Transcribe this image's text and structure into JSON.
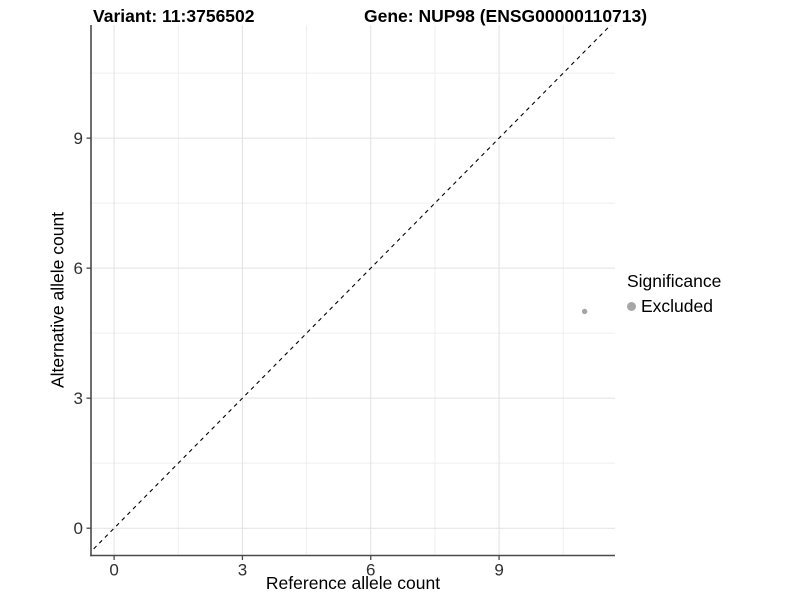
{
  "chart_data": {
    "type": "scatter",
    "title_left": "Variant: 11:3756502",
    "title_right": "Gene: NUP98 (ENSG00000110713)",
    "xlabel": "Reference allele count",
    "ylabel": "Alternative allele count",
    "xlim": [
      -0.54,
      11.71
    ],
    "ylim": [
      -0.63,
      11.61
    ],
    "xticks": [
      0,
      3,
      6,
      9
    ],
    "yticks": [
      0,
      3,
      6,
      9
    ],
    "minor_xticks": [
      1.5,
      4.5,
      7.5,
      10.5
    ],
    "minor_yticks": [
      1.5,
      4.5,
      7.5,
      10.5
    ],
    "grid": true,
    "legend_position": "right",
    "identity_line": {
      "slope": 1,
      "intercept": 0,
      "style": "dashed",
      "color": "#000000"
    },
    "series": [
      {
        "name": "Excluded",
        "color": "#a6a6a6",
        "point_radius": 2.7,
        "points": [
          {
            "x": 11,
            "y": 5
          }
        ]
      }
    ]
  },
  "legend": {
    "title": "Significance",
    "entries": [
      {
        "label": "Excluded",
        "color": "#a6a6a6"
      }
    ]
  },
  "theme": {
    "axis_line_color": "#4a4a4a",
    "tick_label_color": "#303030",
    "major_grid_color": "#e2e2e2",
    "minor_grid_color": "#efefef",
    "background_color": "#ffffff"
  }
}
